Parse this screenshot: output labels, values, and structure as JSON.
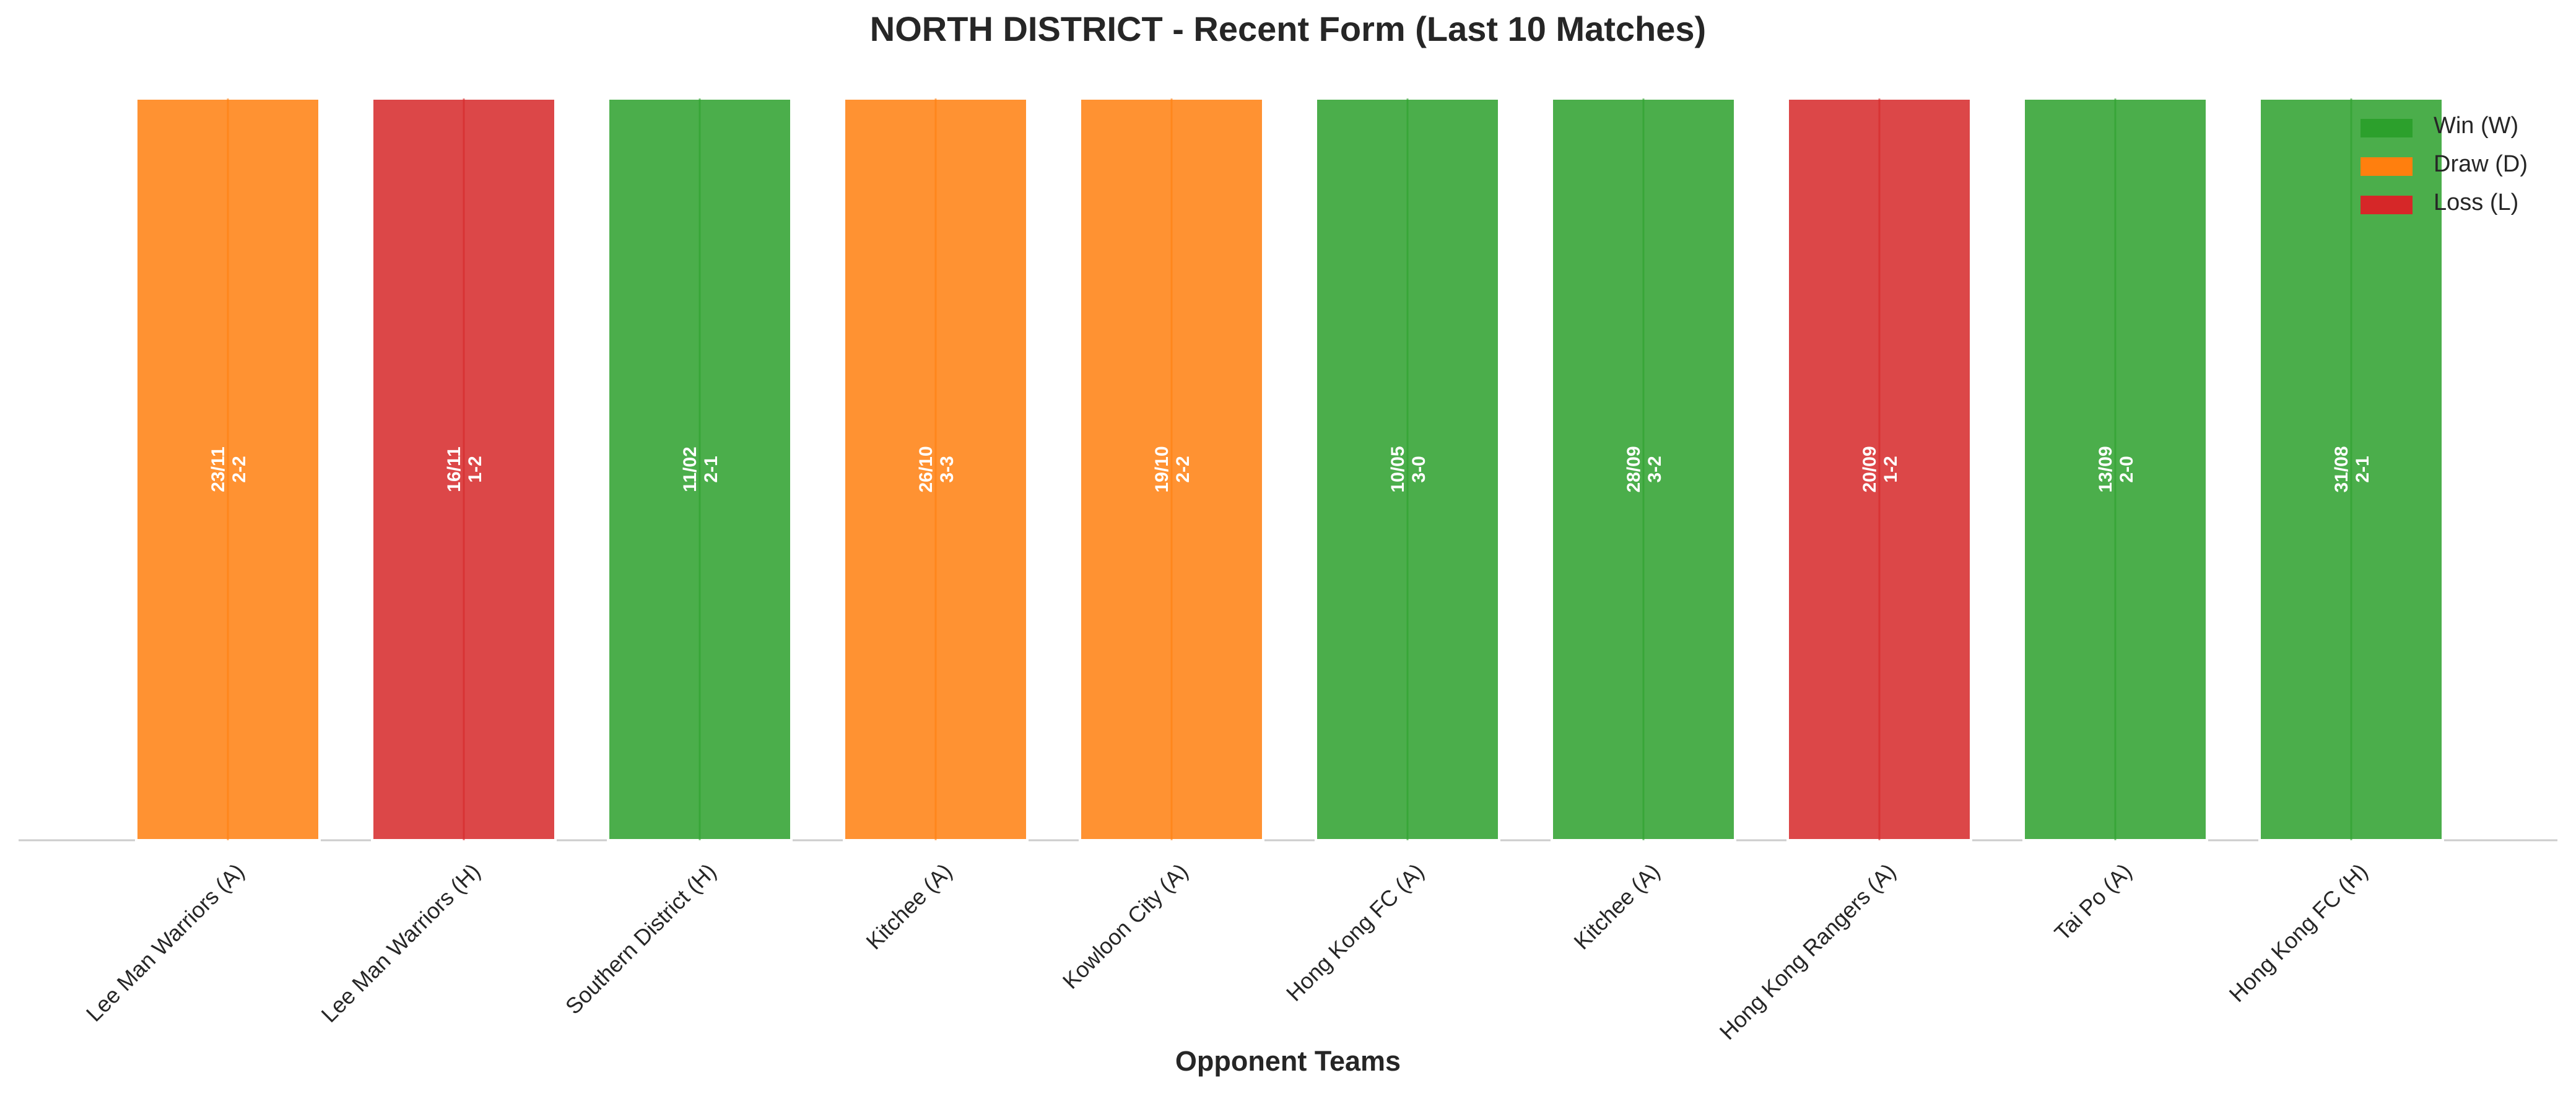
{
  "chart_data": {
    "type": "bar",
    "title": "NORTH DISTRICT - Recent Form (Last 10 Matches)",
    "xlabel": "Opponent Teams",
    "ylabel": "",
    "grid": false,
    "legend_position": "top-right",
    "categories": [
      "Lee Man Warriors (A)",
      "Lee Man Warriors (H)",
      "Southern District (H)",
      "Kitchee (A)",
      "Kowloon City (A)",
      "Hong Kong FC (A)",
      "Kitchee (A)",
      "Hong Kong Rangers (A)",
      "Tai Po (A)",
      "Hong Kong FC (H)"
    ],
    "values": [
      1,
      1,
      1,
      1,
      1,
      1,
      1,
      1,
      1,
      1
    ],
    "results": [
      "D",
      "L",
      "W",
      "D",
      "D",
      "W",
      "W",
      "L",
      "W",
      "W"
    ],
    "dates": [
      "23/11",
      "16/11",
      "11/02",
      "26/10",
      "19/10",
      "10/05",
      "28/09",
      "20/09",
      "13/09",
      "31/08"
    ],
    "scores": [
      "2-2",
      "1-2",
      "2-1",
      "3-3",
      "2-2",
      "3-0",
      "3-2",
      "1-2",
      "2-0",
      "2-1"
    ],
    "legend": [
      {
        "key": "W",
        "label": "Win (W)",
        "color": "#2ca02c"
      },
      {
        "key": "D",
        "label": "Draw (D)",
        "color": "#ff7f0e"
      },
      {
        "key": "L",
        "label": "Loss (L)",
        "color": "#d62728"
      }
    ]
  }
}
